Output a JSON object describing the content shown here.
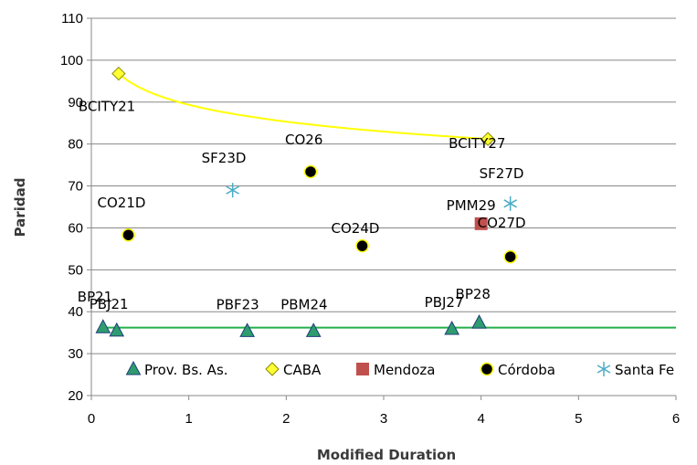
{
  "chart_data": {
    "type": "scatter",
    "xlabel": "Modified Duration",
    "ylabel": "Paridad",
    "xlim": [
      0,
      6
    ],
    "ylim": [
      20,
      110
    ],
    "xticks": [
      0,
      1,
      2,
      3,
      4,
      5,
      6
    ],
    "yticks": [
      20,
      30,
      40,
      50,
      60,
      70,
      80,
      90,
      100,
      110
    ],
    "grid": "horizontal",
    "legend_position": "bottom-inside",
    "series": [
      {
        "name": "Prov. Bs. As.",
        "marker": "triangle",
        "color": "#2e9c6e",
        "points": [
          {
            "x": 0.12,
            "y": 36.3,
            "label": "BP21"
          },
          {
            "x": 0.26,
            "y": 35.5,
            "label": "PBJ21"
          },
          {
            "x": 1.6,
            "y": 35.4,
            "label": "PBF23"
          },
          {
            "x": 2.28,
            "y": 35.4,
            "label": "PBM24"
          },
          {
            "x": 3.7,
            "y": 35.9,
            "label": "PBJ27"
          },
          {
            "x": 3.98,
            "y": 37.4,
            "label": "BP28"
          }
        ],
        "trendline": {
          "type": "linear",
          "color": "#22b04a",
          "x": [
            0.1,
            6
          ],
          "y": [
            36.2,
            36.2
          ]
        }
      },
      {
        "name": "CABA",
        "marker": "diamond",
        "color": "#ffff33",
        "points": [
          {
            "x": 0.28,
            "y": 96.8,
            "label": "BCITY21"
          },
          {
            "x": 4.07,
            "y": 81.2,
            "label": "BCITY27"
          }
        ],
        "trendline": {
          "type": "logarithmic",
          "color": "#ffff00",
          "x": [
            0.28,
            4.07
          ],
          "y": [
            96.8,
            81.2
          ]
        }
      },
      {
        "name": "Mendoza",
        "marker": "square",
        "color": "#c0504d",
        "points": [
          {
            "x": 4.0,
            "y": 61.0,
            "label": "PMM29"
          }
        ]
      },
      {
        "name": "Córdoba",
        "marker": "circle",
        "color": "#000000",
        "points": [
          {
            "x": 0.38,
            "y": 58.3,
            "label": "CO21D"
          },
          {
            "x": 2.25,
            "y": 73.4,
            "label": "CO26"
          },
          {
            "x": 2.78,
            "y": 55.7,
            "label": "CO24D"
          },
          {
            "x": 4.3,
            "y": 53.1,
            "label": "CO27D"
          }
        ]
      },
      {
        "name": "Santa Fe",
        "marker": "asterisk",
        "color": "#4bacc6",
        "points": [
          {
            "x": 1.45,
            "y": 69.0,
            "label": "SF23D"
          },
          {
            "x": 4.3,
            "y": 65.8,
            "label": "SF27D"
          }
        ]
      }
    ]
  }
}
